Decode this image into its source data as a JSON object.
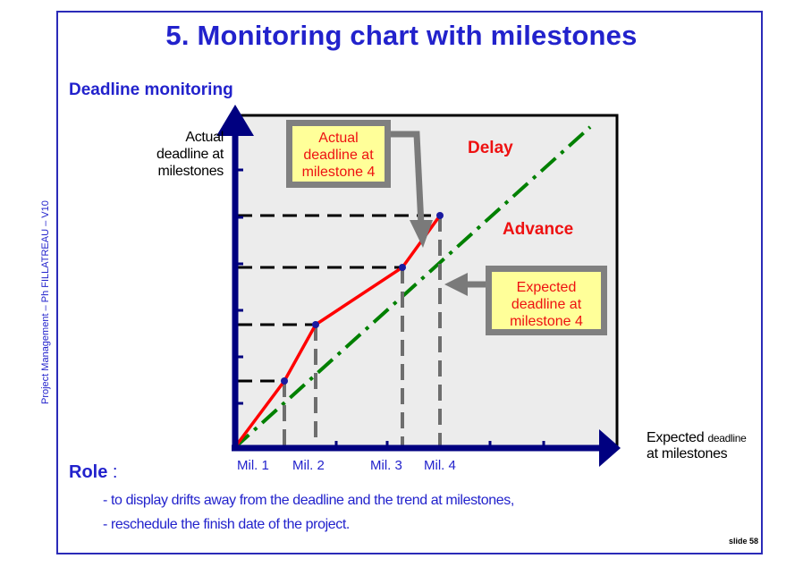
{
  "title": "5. Monitoring chart with milestones",
  "subtitle": "Deadline monitoring",
  "side_label": "Project Management – Ph FILLATREAU – V10",
  "y_axis_title": [
    "Actual",
    "deadline at",
    "milestones"
  ],
  "x_axis_title": {
    "main": "Expected",
    "small": "deadline",
    "line2": "at milestones"
  },
  "milestones": [
    "Mil. 1",
    "Mil. 2",
    "Mil. 3",
    "Mil. 4"
  ],
  "region_labels": {
    "delay": "Delay",
    "advance": "Advance"
  },
  "callout_actual": [
    "Actual",
    "deadline at",
    "milestone 4"
  ],
  "callout_expected": [
    "Expected",
    "deadline at",
    "milestone 4"
  ],
  "role": {
    "label": "Role",
    "colon": " :",
    "items": [
      "- to display drifts away from the deadline and the trend at milestones,",
      "- reschedule the finish date of the project."
    ]
  },
  "slide_number": "slide 58",
  "colors": {
    "axis": "#000080",
    "actual_line": "#ff0000",
    "expected_line": "#008000",
    "text_blue": "#2222cc",
    "callout_fill": "#ffff99"
  }
}
